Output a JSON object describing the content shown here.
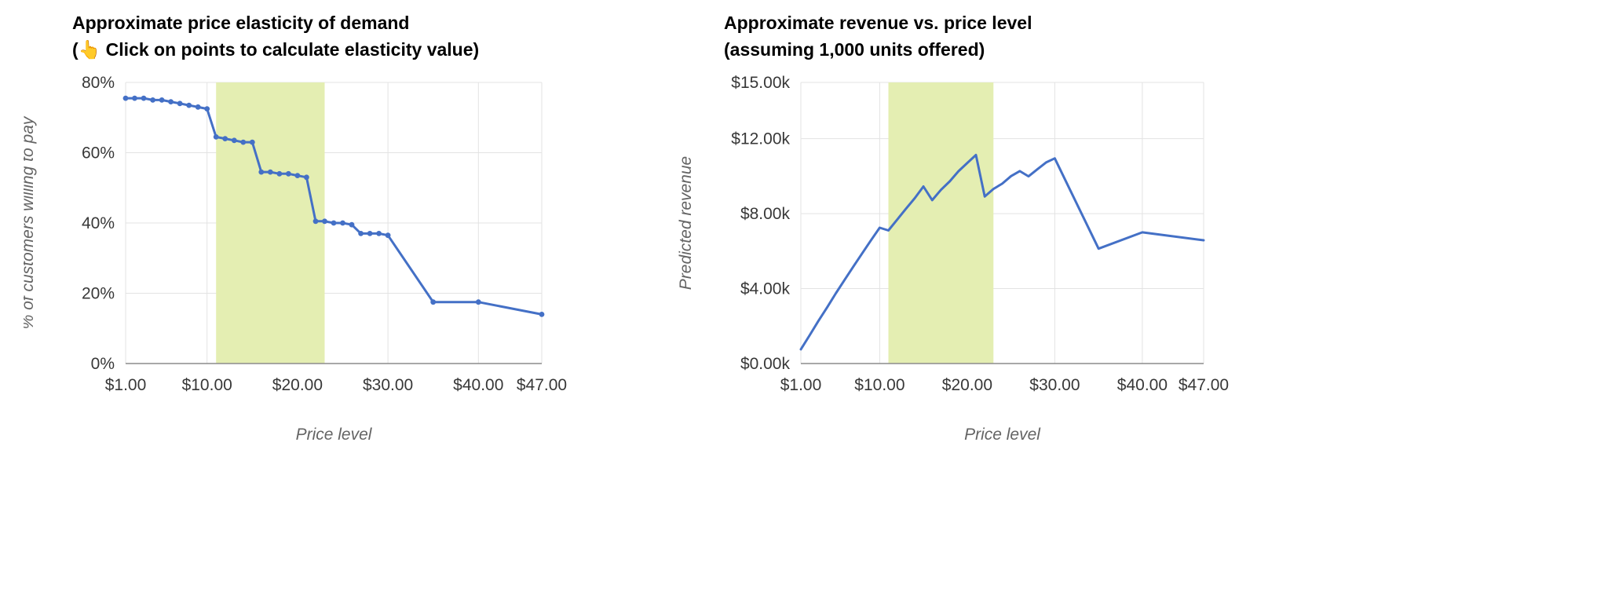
{
  "colors": {
    "grid": "#e3e3e3",
    "baseline": "#8c8c8c",
    "tick_text": "#383838",
    "axis_title": "#646464"
  },
  "chart_data": [
    {
      "type": "line",
      "title": "Approximate price elasticity of demand",
      "subtitle": "(👆 Click on points to calculate elasticity value)",
      "xlabel": "Price level",
      "ylabel": "% of customers willing to pay",
      "legend": "none",
      "grid": true,
      "xlim": [
        1,
        47
      ],
      "ylim": [
        0,
        80
      ],
      "x": [
        1,
        2,
        3,
        4,
        5,
        6,
        7,
        8,
        9,
        10,
        11,
        12,
        13,
        14,
        15,
        16,
        17,
        18,
        19,
        20,
        21,
        22,
        23,
        24,
        25,
        26,
        27,
        28,
        29,
        30,
        35,
        40,
        47
      ],
      "values": [
        75.5,
        75.5,
        75.5,
        75,
        75,
        74.5,
        74,
        73.5,
        73,
        72.5,
        64.5,
        64,
        63.5,
        63,
        63,
        54.5,
        54.5,
        54,
        54,
        53.5,
        53,
        40.5,
        40.5,
        40,
        40,
        39.5,
        37,
        37,
        37,
        36.5,
        17.5,
        17.5,
        14
      ],
      "xticks": [
        {
          "value": 1,
          "label": "$1.00"
        },
        {
          "value": 10,
          "label": "$10.00"
        },
        {
          "value": 20,
          "label": "$20.00"
        },
        {
          "value": 30,
          "label": "$30.00"
        },
        {
          "value": 40,
          "label": "$40.00"
        },
        {
          "value": 47,
          "label": "$47.00"
        }
      ],
      "yticks": [
        {
          "value": 0,
          "label": "0%"
        },
        {
          "value": 20,
          "label": "20%"
        },
        {
          "value": 40,
          "label": "40%"
        },
        {
          "value": 60,
          "label": "60%"
        },
        {
          "value": 80,
          "label": "80%"
        }
      ],
      "highlight_band": {
        "from": 11,
        "to": 23,
        "color": "#e4eeb2"
      },
      "series_color": "#4470c6",
      "point_markers": true
    },
    {
      "type": "line",
      "title": "Approximate revenue vs. price level",
      "subtitle": "(assuming 1,000 units offered)",
      "xlabel": "Price level",
      "ylabel": "Predicted revenue",
      "legend": "none",
      "grid": true,
      "xlim": [
        1,
        47
      ],
      "ylim": [
        0,
        15
      ],
      "x": [
        1,
        2,
        3,
        4,
        5,
        6,
        7,
        8,
        9,
        10,
        11,
        12,
        13,
        14,
        15,
        16,
        17,
        18,
        19,
        20,
        21,
        22,
        23,
        24,
        25,
        26,
        27,
        28,
        29,
        30,
        35,
        40,
        47
      ],
      "values": [
        0.76,
        1.51,
        2.27,
        3.0,
        3.75,
        4.47,
        5.18,
        5.88,
        6.57,
        7.25,
        7.1,
        7.68,
        8.26,
        8.82,
        9.45,
        8.72,
        9.27,
        9.72,
        10.26,
        10.7,
        11.13,
        8.91,
        9.32,
        9.6,
        10.0,
        10.27,
        9.99,
        10.36,
        10.73,
        10.95,
        6.13,
        7.0,
        6.58
      ],
      "xticks": [
        {
          "value": 1,
          "label": "$1.00"
        },
        {
          "value": 10,
          "label": "$10.00"
        },
        {
          "value": 20,
          "label": "$20.00"
        },
        {
          "value": 30,
          "label": "$30.00"
        },
        {
          "value": 40,
          "label": "$40.00"
        },
        {
          "value": 47,
          "label": "$47.00"
        }
      ],
      "yticks": [
        {
          "value": 0,
          "label": "$0.00k"
        },
        {
          "value": 4,
          "label": "$4.00k"
        },
        {
          "value": 8,
          "label": "$8.00k"
        },
        {
          "value": 12,
          "label": "$12.00k"
        },
        {
          "value": 15,
          "label": "$15.00k"
        }
      ],
      "highlight_band": {
        "from": 11,
        "to": 23,
        "color": "#e4eeb2"
      },
      "series_color": "#4470c6",
      "point_markers": false
    }
  ]
}
